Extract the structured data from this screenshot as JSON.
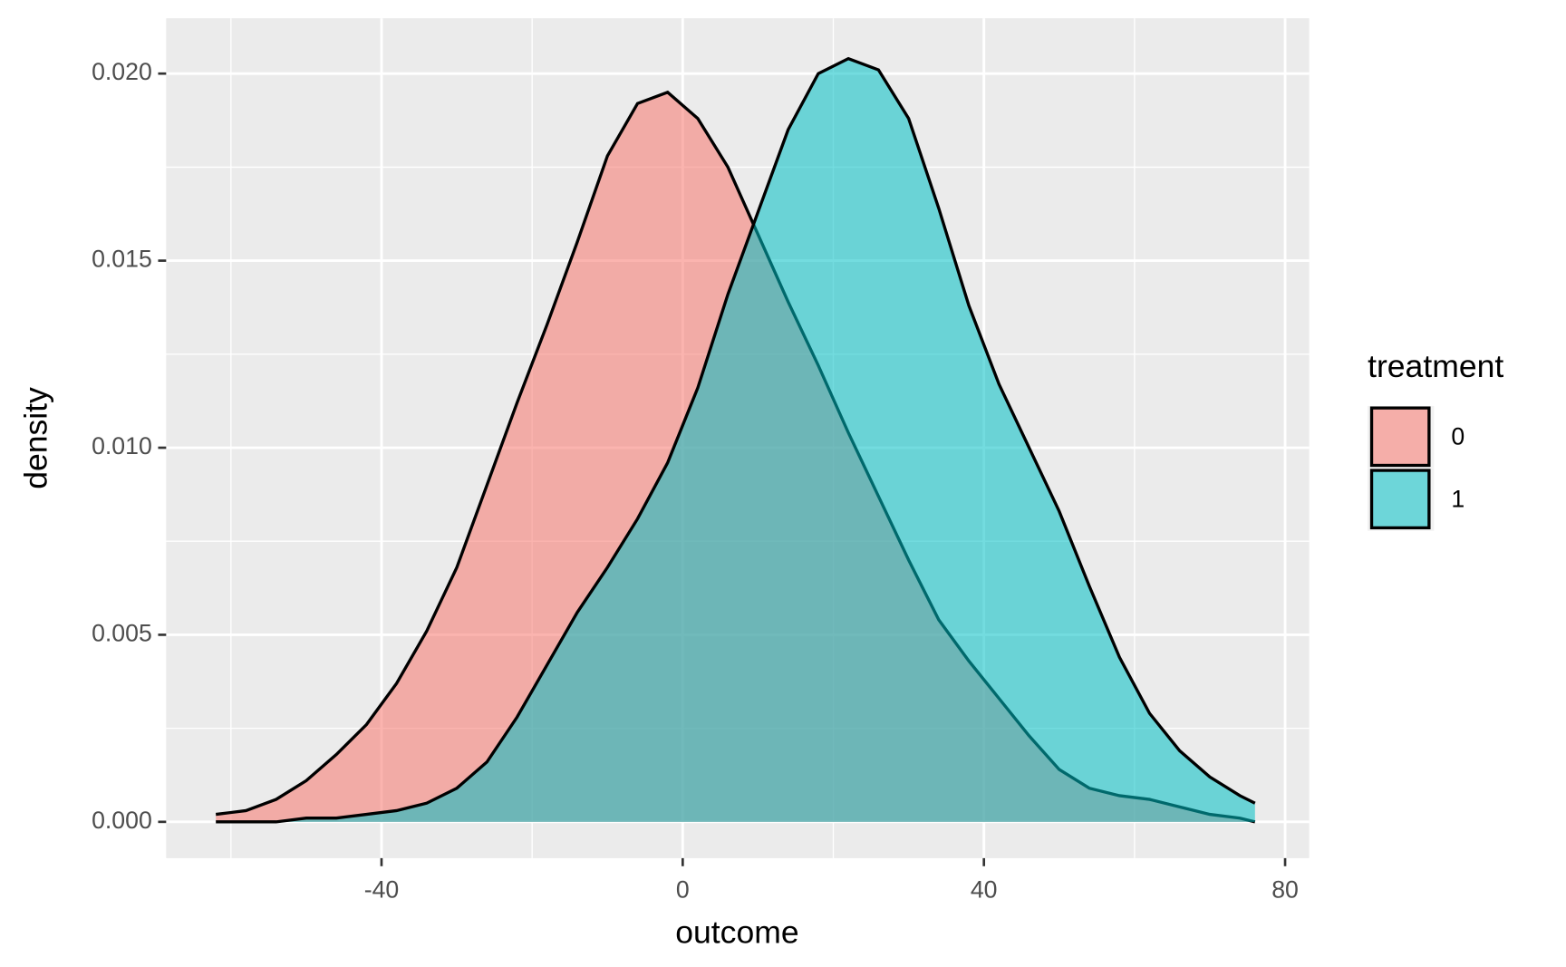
{
  "chart_data": {
    "type": "density",
    "x_label": "outcome",
    "y_label": "density",
    "legend_title": "treatment",
    "legend_position": "right",
    "grid": true,
    "x": [
      -62,
      -58,
      -54,
      -50,
      -46,
      -42,
      -38,
      -34,
      -30,
      -26,
      -22,
      -18,
      -14,
      -10,
      -6,
      -2,
      2,
      6,
      10,
      14,
      18,
      22,
      26,
      30,
      34,
      38,
      42,
      46,
      50,
      54,
      58,
      62,
      66,
      70,
      74,
      76
    ],
    "series": [
      {
        "name": "0",
        "color": "#F8766D",
        "values": [
          0.0002,
          0.0003,
          0.0006,
          0.0011,
          0.0018,
          0.0026,
          0.0037,
          0.0051,
          0.0068,
          0.009,
          0.0112,
          0.0133,
          0.0155,
          0.0178,
          0.0192,
          0.0195,
          0.0188,
          0.0175,
          0.0157,
          0.0139,
          0.0122,
          0.0104,
          0.0087,
          0.007,
          0.0054,
          0.0043,
          0.0033,
          0.0023,
          0.0014,
          0.0009,
          0.0007,
          0.0006,
          0.0004,
          0.0002,
          0.0001,
          0.0
        ]
      },
      {
        "name": "1",
        "color": "#00BFC4",
        "values": [
          0.0,
          0.0,
          0.0,
          0.0001,
          0.0001,
          0.0002,
          0.0003,
          0.0005,
          0.0009,
          0.0016,
          0.0028,
          0.0042,
          0.0056,
          0.0068,
          0.0081,
          0.0096,
          0.0116,
          0.0141,
          0.0163,
          0.0185,
          0.02,
          0.0204,
          0.0201,
          0.0188,
          0.0164,
          0.0138,
          0.0117,
          0.01,
          0.0083,
          0.0063,
          0.0044,
          0.0029,
          0.0019,
          0.0012,
          0.0007,
          0.0005
        ]
      }
    ],
    "xlim": [
      -68.6,
      83.2
    ],
    "ylim": [
      -0.00097,
      0.02148
    ],
    "xticks": [
      -40,
      0,
      40,
      80
    ],
    "yticks": [
      {
        "value": 0,
        "label": "0.000"
      },
      {
        "value": 0.005,
        "label": "0.005"
      },
      {
        "value": 0.01,
        "label": "0.010"
      },
      {
        "value": 0.015,
        "label": "0.015"
      },
      {
        "value": 0.02,
        "label": "0.020"
      }
    ]
  }
}
